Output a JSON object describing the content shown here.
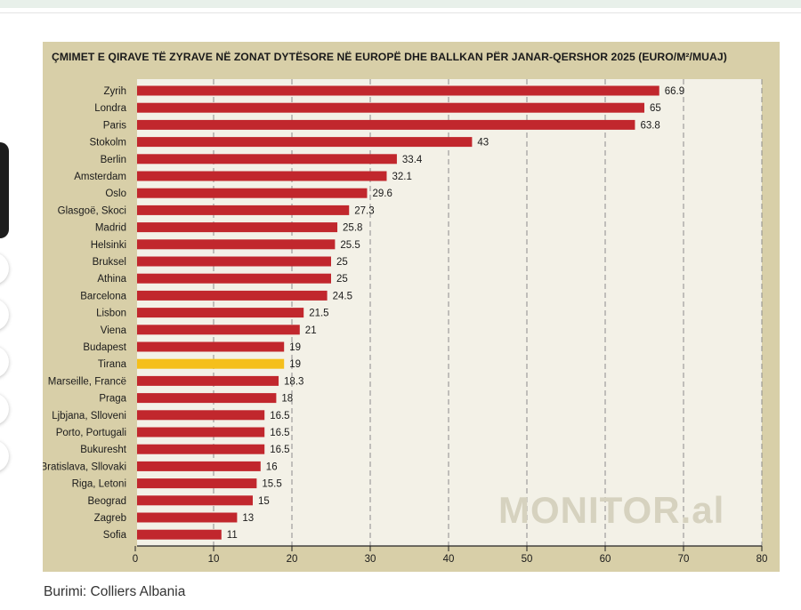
{
  "source": "Burimi: Colliers Albania",
  "watermark": "MONITOR.al",
  "colors": {
    "bar": "#c1272d",
    "highlight": "#f5bf1b",
    "plot_background": "#f3f1e7",
    "frame": "#d8cfa8",
    "gridline": "#8c8c8c"
  },
  "chart_data": {
    "type": "bar",
    "orientation": "horizontal",
    "title": "ÇMIMET E QIRAVE TË ZYRAVE NË ZONAT DYTËSORE NË EUROPË DHE BALLKAN PËR JANAR-QERSHOR 2025 (EURO/M²/MUAJ)",
    "categories": [
      "Zyrih",
      "Londra",
      "Paris",
      "Stokolm",
      "Berlin",
      "Amsterdam",
      "Oslo",
      "Glasgoë, Skoci",
      "Madrid",
      "Helsinki",
      "Bruksel",
      "Athina",
      "Barcelona",
      "Lisbon",
      "Viena",
      "Budapest",
      "Tirana",
      "Marseille, Francë",
      "Praga",
      "Ljbjana, Slloveni",
      "Porto, Portugali",
      "Bukuresht",
      "Bratislava, Sllovaki",
      "Riga, Letoni",
      "Beograd",
      "Zagreb",
      "Sofia"
    ],
    "values": [
      66.9,
      65,
      63.8,
      43,
      33.4,
      32.1,
      29.6,
      27.3,
      25.8,
      25.5,
      25,
      25,
      24.5,
      21.5,
      21,
      19,
      19,
      18.3,
      18,
      16.5,
      16.5,
      16.5,
      16,
      15.5,
      15,
      13,
      11
    ],
    "value_labels": [
      "66.9",
      "65",
      "63.8",
      "43",
      "33.4",
      "32.1",
      "29.6",
      "27.3",
      "25.8",
      "25.5",
      "25",
      "25",
      "24.5",
      "21.5",
      "21",
      "19",
      "19",
      "18.3",
      "18",
      "16.5",
      "16.5",
      "16.5",
      "16",
      "15.5",
      "15",
      "13",
      "11"
    ],
    "highlight": "Tirana",
    "xlim": [
      0,
      80
    ],
    "xticks": [
      0,
      10,
      20,
      30,
      40,
      50,
      60,
      70,
      80
    ],
    "xtick_labels": [
      "0",
      "10",
      "20",
      "30",
      "40",
      "50",
      "60",
      "70",
      "80"
    ],
    "grid": "vertical-dashed"
  }
}
